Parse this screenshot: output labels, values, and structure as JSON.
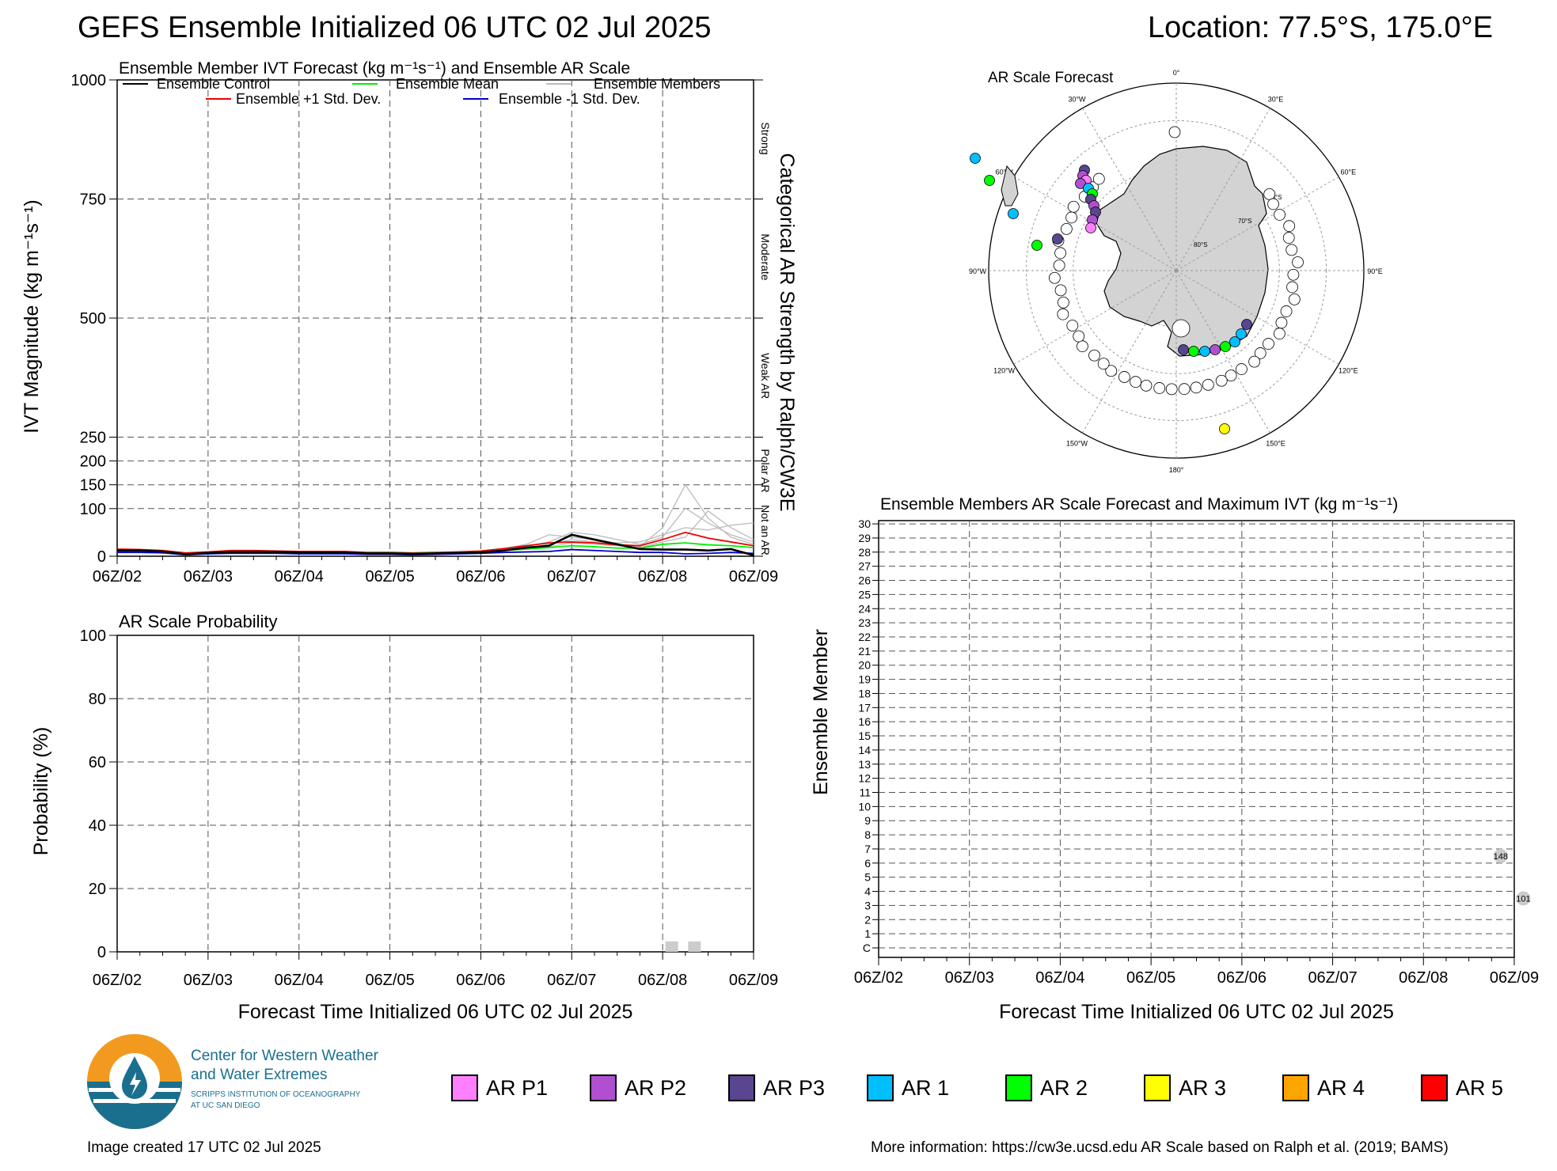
{
  "header": {
    "title": "GEFS Ensemble Initialized 06 UTC 02 Jul 2025",
    "location": "Location: 77.5°S, 175.0°E"
  },
  "ivt_panel": {
    "title": "Ensemble Member IVT Forecast (kg m⁻¹s⁻¹) and Ensemble AR Scale",
    "ylabel": "IVT Magnitude (kg m⁻¹s⁻¹)",
    "right_label": "Categorical AR Strength by Ralph/CW3E",
    "categories": [
      "Strong",
      "Moderate",
      "Weak AR",
      "Polar AR",
      "Not an AR"
    ],
    "legend": {
      "control": "Ensemble Control",
      "mean": "Ensemble Mean",
      "members": "Ensemble Members",
      "plus_sd": "Ensemble +1 Std. Dev.",
      "minus_sd": "Ensemble -1 Std. Dev."
    }
  },
  "prob_panel": {
    "title": "AR Scale Probability",
    "ylabel": "Probability (%)",
    "xlabel": "Forecast Time Initialized 06 UTC 02 Jul 2025"
  },
  "map_panel": {
    "title": "AR Scale Forecast",
    "lon_labels": [
      "0°",
      "30°E",
      "60°E",
      "90°E",
      "120°E",
      "150°E",
      "180°",
      "150°W",
      "120°W",
      "90°W",
      "60°W",
      "30°W"
    ],
    "lat_labels": [
      "60°S",
      "70°S",
      "80°S"
    ]
  },
  "member_panel": {
    "title": "Ensemble Members AR Scale Forecast and Maximum IVT (kg m⁻¹s⁻¹)",
    "ylabel": "Ensemble Member",
    "xlabel": "Forecast Time Initialized 06 UTC 02 Jul 2025",
    "members": [
      "C",
      "1",
      "2",
      "3",
      "4",
      "5",
      "6",
      "7",
      "8",
      "9",
      "10",
      "11",
      "12",
      "13",
      "14",
      "15",
      "16",
      "17",
      "18",
      "19",
      "20",
      "21",
      "22",
      "23",
      "24",
      "25",
      "26",
      "27",
      "28",
      "29",
      "30"
    ],
    "markers": [
      {
        "member": "6",
        "x": 6.85,
        "ivt": "148"
      },
      {
        "member": "3",
        "x": 7.1,
        "ivt": "101"
      }
    ]
  },
  "ar_legend": [
    {
      "label": "AR P1",
      "color": "#ff80ff"
    },
    {
      "label": "AR P2",
      "color": "#b050d0"
    },
    {
      "label": "AR P3",
      "color": "#5a4590"
    },
    {
      "label": "AR 1",
      "color": "#00bfff"
    },
    {
      "label": "AR 2",
      "color": "#00ff00"
    },
    {
      "label": "AR 3",
      "color": "#ffff00"
    },
    {
      "label": "AR 4",
      "color": "#ffa500"
    },
    {
      "label": "AR 5",
      "color": "#ff0000"
    }
  ],
  "logo": {
    "line1": "Center for Western Weather",
    "line2": "and Water Extremes",
    "line3": "SCRIPPS INSTITUTION OF OCEANOGRAPHY",
    "line4": "AT UC SAN DIEGO"
  },
  "footer": {
    "created": "Image created 17 UTC 02 Jul 2025",
    "info": "More information: https://cw3e.ucsd.edu AR Scale based on Ralph et al. (2019; BAMS)"
  },
  "colors": {
    "control": "#000000",
    "mean": "#00ee00",
    "members": "#bbbbbb",
    "plus_sd": "#ee0000",
    "minus_sd": "#0000cc",
    "land": "#d3d3d3"
  },
  "chart_data": [
    {
      "type": "line",
      "x": [
        "06Z/02",
        "06Z/03",
        "06Z/04",
        "06Z/05",
        "06Z/06",
        "06Z/07",
        "06Z/08",
        "06Z/09"
      ],
      "x_values": [
        0,
        0.25,
        0.5,
        0.75,
        1,
        1.25,
        1.5,
        1.75,
        2,
        2.25,
        2.5,
        2.75,
        3,
        3.25,
        3.5,
        3.75,
        4,
        4.25,
        4.5,
        4.75,
        5,
        5.25,
        5.5,
        5.75,
        6,
        6.25,
        6.5,
        6.75,
        7
      ],
      "yticks": [
        0,
        100,
        150,
        200,
        250,
        500,
        750,
        1000
      ],
      "ylim": [
        0,
        1000
      ],
      "series": [
        {
          "name": "Ensemble Control",
          "values": [
            12,
            12,
            10,
            4,
            7,
            9,
            9,
            9,
            8,
            8,
            8,
            6,
            6,
            5,
            6,
            7,
            8,
            12,
            18,
            22,
            45,
            35,
            25,
            15,
            14,
            14,
            12,
            15,
            2
          ]
        },
        {
          "name": "Ensemble Mean",
          "values": [
            12,
            12,
            10,
            5,
            7,
            10,
            10,
            9,
            8,
            8,
            8,
            7,
            7,
            6,
            7,
            8,
            9,
            12,
            15,
            18,
            22,
            20,
            17,
            17,
            25,
            28,
            24,
            22,
            18
          ]
        },
        {
          "name": "Ensemble +1 Std. Dev.",
          "values": [
            15,
            14,
            12,
            7,
            9,
            12,
            12,
            11,
            10,
            10,
            10,
            8,
            8,
            7,
            8,
            9,
            11,
            16,
            22,
            28,
            30,
            28,
            24,
            22,
            35,
            50,
            38,
            30,
            22
          ]
        },
        {
          "name": "Ensemble -1 Std. Dev.",
          "values": [
            8,
            8,
            7,
            3,
            5,
            6,
            6,
            6,
            5,
            5,
            5,
            4,
            4,
            3,
            4,
            5,
            6,
            8,
            9,
            10,
            14,
            12,
            10,
            8,
            8,
            5,
            6,
            8,
            6
          ]
        }
      ],
      "members": [
        [
          14,
          13,
          11,
          6,
          8,
          11,
          11,
          10,
          9,
          9,
          9,
          7,
          7,
          6,
          7,
          9,
          10,
          16,
          25,
          45,
          40,
          35,
          25,
          20,
          60,
          150,
          80,
          40,
          25
        ],
        [
          10,
          10,
          9,
          5,
          6,
          9,
          9,
          8,
          8,
          8,
          8,
          6,
          6,
          5,
          6,
          8,
          9,
          14,
          20,
          30,
          50,
          45,
          35,
          25,
          40,
          101,
          70,
          45,
          30
        ],
        [
          12,
          12,
          10,
          4,
          7,
          10,
          10,
          9,
          8,
          8,
          8,
          6,
          6,
          5,
          6,
          8,
          9,
          12,
          18,
          25,
          35,
          30,
          28,
          30,
          45,
          60,
          55,
          65,
          70
        ],
        [
          11,
          11,
          10,
          5,
          7,
          9,
          9,
          9,
          8,
          8,
          8,
          7,
          7,
          6,
          7,
          8,
          9,
          13,
          16,
          20,
          28,
          25,
          22,
          18,
          30,
          40,
          95,
          60,
          35
        ]
      ]
    },
    {
      "type": "bar",
      "x": [
        "06Z/02",
        "06Z/03",
        "06Z/04",
        "06Z/05",
        "06Z/06",
        "06Z/07",
        "06Z/08",
        "06Z/09"
      ],
      "bars": [
        {
          "x": 6.1,
          "value": 3.3
        },
        {
          "x": 6.35,
          "value": 3.3
        }
      ],
      "yticks": [
        0,
        20,
        40,
        60,
        80,
        100
      ],
      "ylim": [
        0,
        100
      ]
    },
    {
      "type": "scatter",
      "x": [
        "06Z/02",
        "06Z/03",
        "06Z/04",
        "06Z/05",
        "06Z/06",
        "06Z/07",
        "06Z/08",
        "06Z/09"
      ],
      "points": [
        {
          "member": "6",
          "x": 6.85,
          "value": 148
        },
        {
          "member": "3",
          "x": 7.1,
          "value": 101
        }
      ]
    }
  ]
}
